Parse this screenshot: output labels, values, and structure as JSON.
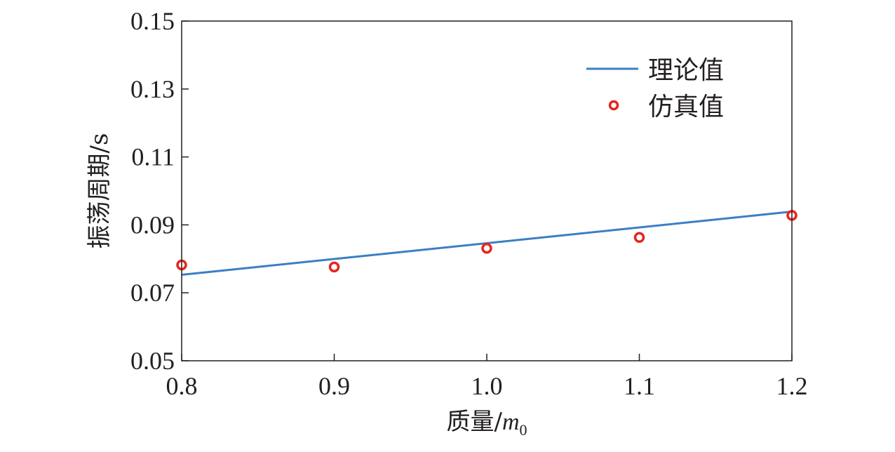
{
  "chart_data": {
    "type": "scatter",
    "xlabel": "质量/",
    "xlabel_unit_symbol": "m",
    "xlabel_unit_subscript": "0",
    "ylabel": "振荡周期/s",
    "xlim": [
      0.8,
      1.2
    ],
    "ylim": [
      0.05,
      0.15
    ],
    "xticks": [
      "0.8",
      "0.9",
      "1.0",
      "1.1",
      "1.2"
    ],
    "yticks": [
      "0.05",
      "0.07",
      "0.09",
      "0.11",
      "0.13",
      "0.15"
    ],
    "grid": false,
    "legend_position": "top-right",
    "series": [
      {
        "name": "理论值",
        "kind": "line",
        "color": "#3b7fc4",
        "x": [
          0.8,
          1.2
        ],
        "y": [
          0.0753,
          0.0939
        ]
      },
      {
        "name": "仿真值",
        "kind": "scatter",
        "color": "#e5261f",
        "x": [
          0.8,
          0.9,
          1.0,
          1.1,
          1.2
        ],
        "y": [
          0.0782,
          0.0776,
          0.0831,
          0.0863,
          0.0928
        ]
      }
    ]
  }
}
